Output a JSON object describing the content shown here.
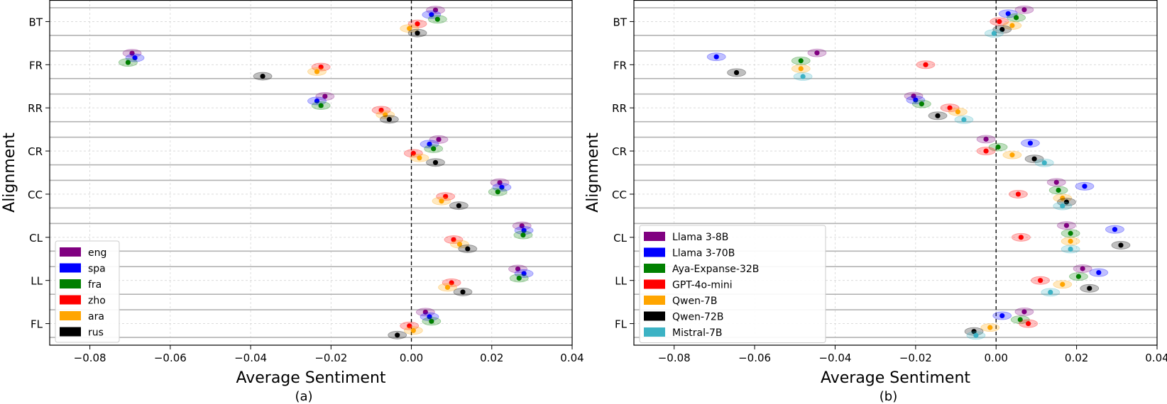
{
  "chart_data": [
    {
      "type": "scatter",
      "panel_label": "(a)",
      "xlabel": "Average Sentiment",
      "ylabel": "Alignment",
      "xlim": [
        -0.09,
        0.04
      ],
      "xticks": [
        -0.08,
        -0.06,
        -0.04,
        -0.02,
        0.0,
        0.02,
        0.04
      ],
      "xtick_labels": [
        "−0.08",
        "−0.06",
        "−0.04",
        "−0.02",
        "0.00",
        "0.02",
        "0.04"
      ],
      "categories": [
        "BT",
        "FR",
        "RR",
        "CR",
        "CC",
        "CL",
        "LL",
        "FL"
      ],
      "grid": true,
      "reference_line_x": 0.0,
      "legend_position": "lower-left",
      "series": [
        {
          "name": "eng",
          "color": "#800080",
          "values": [
            0.006,
            -0.0695,
            -0.0215,
            0.0068,
            0.022,
            0.0275,
            0.0265,
            0.0035
          ]
        },
        {
          "name": "spa",
          "color": "#0000ff",
          "values": [
            0.005,
            -0.0688,
            -0.0235,
            0.0045,
            0.0225,
            0.028,
            0.028,
            0.0045
          ]
        },
        {
          "name": "fra",
          "color": "#008000",
          "values": [
            0.0065,
            -0.0705,
            -0.0225,
            0.0055,
            0.0215,
            0.0278,
            0.0268,
            0.005
          ]
        },
        {
          "name": "zho",
          "color": "#ff0000",
          "values": [
            0.0015,
            -0.0225,
            -0.0075,
            0.0005,
            0.0085,
            0.0105,
            0.01,
            -0.0005
          ]
        },
        {
          "name": "ara",
          "color": "#ffa500",
          "values": [
            -0.0005,
            -0.0235,
            -0.0065,
            0.002,
            0.0075,
            0.012,
            0.009,
            0.0005
          ]
        },
        {
          "name": "rus",
          "color": "#000000",
          "values": [
            0.0015,
            -0.037,
            -0.0055,
            0.006,
            0.0118,
            0.014,
            0.0128,
            -0.0035
          ]
        }
      ]
    },
    {
      "type": "scatter",
      "panel_label": "(b)",
      "xlabel": "Average Sentiment",
      "ylabel": "Alignment",
      "xlim": [
        -0.09,
        0.04
      ],
      "xticks": [
        -0.08,
        -0.06,
        -0.04,
        -0.02,
        0.0,
        0.02,
        0.04
      ],
      "xtick_labels": [
        "−0.08",
        "−0.06",
        "−0.04",
        "−0.02",
        "0.00",
        "0.02",
        "0.04"
      ],
      "categories": [
        "BT",
        "FR",
        "RR",
        "CR",
        "CC",
        "CL",
        "LL",
        "FL"
      ],
      "grid": true,
      "reference_line_x": 0.0,
      "legend_position": "lower-left",
      "series": [
        {
          "name": "Llama 3-8B",
          "color": "#800080",
          "values": [
            0.007,
            -0.0445,
            -0.0205,
            -0.0025,
            0.015,
            0.0175,
            0.0215,
            0.007
          ]
        },
        {
          "name": "Llama 3-70B",
          "color": "#0000ff",
          "values": [
            0.003,
            -0.0695,
            -0.02,
            0.0085,
            0.022,
            0.0295,
            0.0255,
            0.0015
          ]
        },
        {
          "name": "Aya-Expanse-32B",
          "color": "#008000",
          "values": [
            0.005,
            -0.0485,
            -0.0185,
            0.0005,
            0.0155,
            0.0185,
            0.0205,
            0.006
          ]
        },
        {
          "name": "GPT-4o-mini",
          "color": "#ff0000",
          "values": [
            0.0008,
            -0.0175,
            -0.0115,
            -0.0025,
            0.0055,
            0.0062,
            0.011,
            0.008
          ]
        },
        {
          "name": "Qwen-7B",
          "color": "#ffa500",
          "values": [
            0.004,
            -0.0485,
            -0.0095,
            0.004,
            0.0165,
            0.0185,
            0.0165,
            -0.0015
          ]
        },
        {
          "name": "Qwen-72B",
          "color": "#000000",
          "values": [
            0.0015,
            -0.0645,
            -0.0145,
            0.0095,
            0.0175,
            0.031,
            0.0232,
            -0.0055
          ]
        },
        {
          "name": "Mistral-7B",
          "color": "#3cb2c4",
          "values": [
            -0.0005,
            -0.048,
            -0.008,
            0.012,
            0.0165,
            0.0185,
            0.0135,
            -0.005
          ]
        }
      ]
    }
  ]
}
